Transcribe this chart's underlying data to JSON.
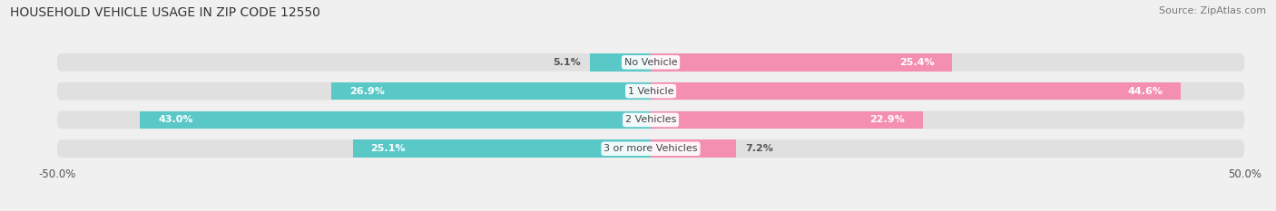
{
  "title": "HOUSEHOLD VEHICLE USAGE IN ZIP CODE 12550",
  "source": "Source: ZipAtlas.com",
  "categories": [
    "No Vehicle",
    "1 Vehicle",
    "2 Vehicles",
    "3 or more Vehicles"
  ],
  "owner_values": [
    5.1,
    26.9,
    43.0,
    25.1
  ],
  "renter_values": [
    25.4,
    44.6,
    22.9,
    7.2
  ],
  "owner_color": "#5bc8c8",
  "renter_color": "#f48fb1",
  "axis_max": 50.0,
  "bar_height": 0.62,
  "background_color": "#f0f0f0",
  "bar_background_color": "#e0e0e0",
  "title_fontsize": 10,
  "source_fontsize": 8,
  "label_fontsize": 8,
  "category_fontsize": 8,
  "legend_fontsize": 8.5,
  "tick_fontsize": 8.5,
  "owner_label_threshold": 10,
  "renter_label_threshold": 10
}
